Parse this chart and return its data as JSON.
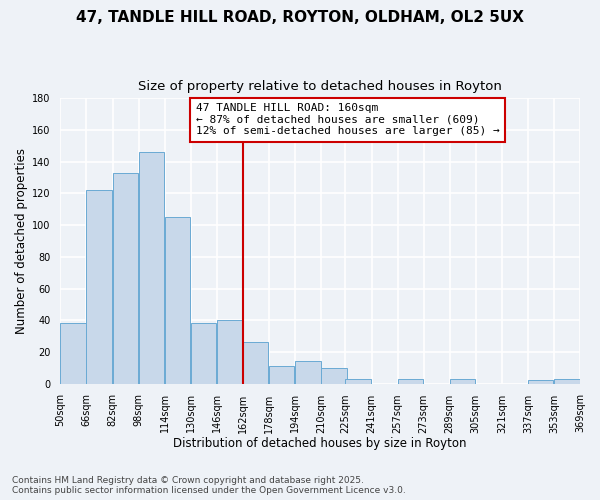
{
  "title": "47, TANDLE HILL ROAD, ROYTON, OLDHAM, OL2 5UX",
  "subtitle": "Size of property relative to detached houses in Royton",
  "xlabel": "Distribution of detached houses by size in Royton",
  "ylabel": "Number of detached properties",
  "bar_color": "#c8d8ea",
  "bar_edge_color": "#6aaad4",
  "background_color": "#eef2f7",
  "grid_color": "#ffffff",
  "bins": [
    50,
    66,
    82,
    98,
    114,
    130,
    146,
    162,
    178,
    194,
    210,
    225,
    241,
    257,
    273,
    289,
    305,
    321,
    337,
    353,
    369
  ],
  "counts": [
    38,
    122,
    133,
    146,
    105,
    38,
    40,
    26,
    11,
    14,
    10,
    3,
    0,
    3,
    0,
    3,
    0,
    0,
    2,
    3
  ],
  "tick_labels": [
    "50sqm",
    "66sqm",
    "82sqm",
    "98sqm",
    "114sqm",
    "130sqm",
    "146sqm",
    "162sqm",
    "178sqm",
    "194sqm",
    "210sqm",
    "225sqm",
    "241sqm",
    "257sqm",
    "273sqm",
    "289sqm",
    "305sqm",
    "321sqm",
    "337sqm",
    "353sqm",
    "369sqm"
  ],
  "vline_x": 162,
  "vline_color": "#cc0000",
  "annotation_title": "47 TANDLE HILL ROAD: 160sqm",
  "annotation_line1": "← 87% of detached houses are smaller (609)",
  "annotation_line2": "12% of semi-detached houses are larger (85) →",
  "annotation_box_color": "#ffffff",
  "annotation_box_edge": "#cc0000",
  "ylim": [
    0,
    180
  ],
  "yticks": [
    0,
    20,
    40,
    60,
    80,
    100,
    120,
    140,
    160,
    180
  ],
  "footnote1": "Contains HM Land Registry data © Crown copyright and database right 2025.",
  "footnote2": "Contains public sector information licensed under the Open Government Licence v3.0.",
  "title_fontsize": 11,
  "subtitle_fontsize": 9.5,
  "label_fontsize": 8.5,
  "tick_fontsize": 7,
  "annotation_fontsize": 8,
  "footnote_fontsize": 6.5
}
